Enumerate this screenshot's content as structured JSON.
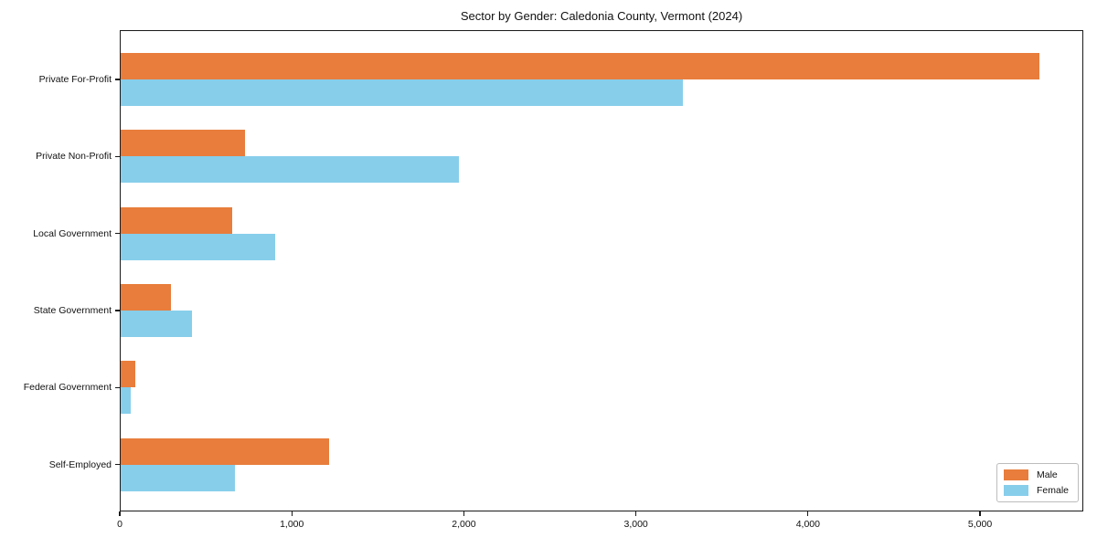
{
  "chart_data": {
    "type": "bar",
    "orientation": "horizontal",
    "title": "Sector by Gender: Caledonia County, Vermont (2024)",
    "categories": [
      "Private For-Profit",
      "Private Non-Profit",
      "Local Government",
      "State Government",
      "Federal Government",
      "Self-Employed"
    ],
    "series": [
      {
        "name": "Male",
        "color": "#e87d3c",
        "values": [
          5340,
          725,
          650,
          293,
          85,
          1210
        ]
      },
      {
        "name": "Female",
        "color": "#87ceeb",
        "values": [
          3270,
          1965,
          900,
          415,
          58,
          665
        ]
      }
    ],
    "xlabel": "",
    "ylabel": "",
    "xlim": [
      0,
      5600
    ],
    "xticks": [
      0,
      1000,
      2000,
      3000,
      4000,
      5000
    ],
    "xtick_labels": [
      "0",
      "1,000",
      "2,000",
      "3,000",
      "4,000",
      "5,000"
    ],
    "grid": false,
    "legend_position": "lower right",
    "frame_color": "#1a1a1a"
  }
}
